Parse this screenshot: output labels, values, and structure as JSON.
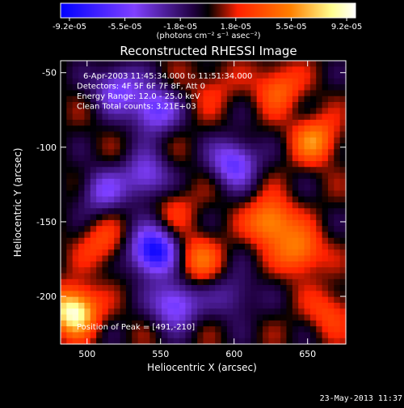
{
  "chart_data": {
    "type": "heatmap",
    "title": "Reconstructed RHESSI Image",
    "xlabel": "Heliocentric X (arcsec)",
    "ylabel": "Heliocentric Y (arcsec)",
    "xlim": [
      482,
      676
    ],
    "ylim": [
      -232,
      -42
    ],
    "x_ticks": [
      500,
      550,
      600,
      650
    ],
    "y_ticks": [
      -50,
      -100,
      -150,
      -200
    ],
    "colorbar": {
      "ticks": [
        "-9.2e-05",
        "-5.5e-05",
        "-1.8e-05",
        "1.8e-05",
        "5.5e-05",
        "9.2e-05"
      ],
      "range": [
        -9.2e-05,
        9.2e-05
      ],
      "unit_label": "(photons cm⁻² s⁻¹ asec⁻²)",
      "colors": [
        "#0000ff",
        "#8040ff",
        "#200040",
        "#000000",
        "#ff3000",
        "#ff8000",
        "#ffffa0",
        "#ffffff"
      ]
    },
    "annotations": [
      "6-Apr-2003 11:45:34.000 to 11:51:34.000",
      "Detectors: 4F 5F 6F 7F 8F, Att 0",
      "Energy Range: 12.0 - 25.0 keV",
      "Clean      Total counts: 3.21E+03"
    ],
    "peak_label": "Position of Peak = [491,-210]",
    "peak_position": [
      491,
      -210
    ],
    "features": [
      {
        "x": 491,
        "y": -210,
        "value": 9.2e-05
      },
      {
        "x": 545,
        "y": -170,
        "value": -9.2e-05
      },
      {
        "x": 560,
        "y": -205,
        "value": -6e-05
      },
      {
        "x": 520,
        "y": -60,
        "value": -5e-05
      },
      {
        "x": 545,
        "y": -75,
        "value": -6e-05
      },
      {
        "x": 540,
        "y": -120,
        "value": -5e-05
      },
      {
        "x": 600,
        "y": -110,
        "value": -6e-05
      },
      {
        "x": 510,
        "y": -130,
        "value": -4e-05
      },
      {
        "x": 630,
        "y": -60,
        "value": 4e-05
      },
      {
        "x": 655,
        "y": -95,
        "value": 5e-05
      },
      {
        "x": 625,
        "y": -150,
        "value": 6e-05
      },
      {
        "x": 645,
        "y": -170,
        "value": 5e-05
      },
      {
        "x": 575,
        "y": -175,
        "value": 4e-05
      },
      {
        "x": 510,
        "y": -165,
        "value": 3e-05
      },
      {
        "x": 560,
        "y": -140,
        "value": 2e-05
      },
      {
        "x": 665,
        "y": -210,
        "value": 3e-05
      },
      {
        "x": 600,
        "y": -200,
        "value": -3e-05
      },
      {
        "x": 585,
        "y": -60,
        "value": 2e-05
      }
    ]
  },
  "footer_timestamp": "23-May-2013 11:37"
}
